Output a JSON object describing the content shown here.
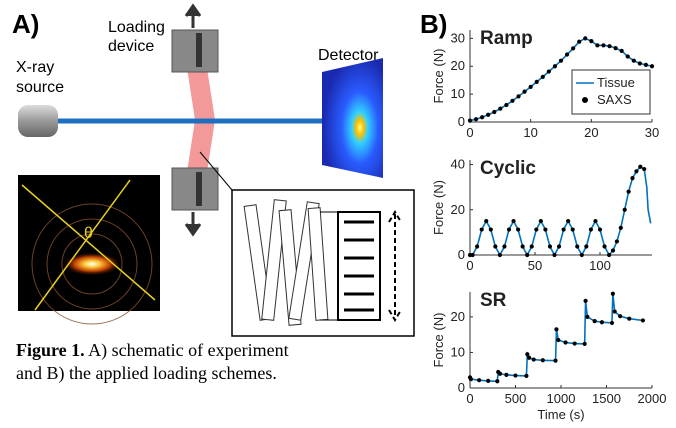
{
  "figure": {
    "panel_a_label": "A)",
    "panel_b_label": "B)",
    "loading_device": [
      "Loading",
      "device"
    ],
    "x_ray_source": [
      "X-ray",
      "source"
    ],
    "detector": "Detector",
    "theta": "θ",
    "caption": {
      "bold": "Figure 1.",
      "lines": [
        " A) schematic of experiment",
        "and B) the applied loading schemes."
      ]
    }
  },
  "chart_data": [
    {
      "type": "line",
      "title": "Ramp",
      "ylabel": "Force (N)",
      "x": [
        0,
        1,
        2,
        3,
        4,
        5,
        6,
        7,
        8,
        9,
        10,
        11,
        12,
        13,
        14,
        15,
        16,
        17,
        18,
        19,
        20,
        21,
        22,
        23,
        24,
        25,
        26,
        27,
        28,
        29,
        30
      ],
      "series": [
        {
          "name": "Tissue",
          "color": "#0072bd",
          "style": "line",
          "values": [
            0.5,
            1,
            1.7,
            2.6,
            3.6,
            4.8,
            6.1,
            7.6,
            9.2,
            10.9,
            12.6,
            14.4,
            16.2,
            18.1,
            20,
            22,
            24.2,
            26.4,
            28.8,
            30,
            29,
            27.5,
            27.5,
            27.2,
            26.5,
            25.5,
            23.5,
            22,
            21,
            20.5,
            20
          ]
        },
        {
          "name": "SAXS",
          "color": "#000000",
          "style": "markers",
          "values": [
            0.5,
            1,
            1.7,
            2.6,
            3.6,
            4.8,
            6.1,
            7.6,
            9.2,
            10.9,
            12.6,
            14.4,
            16.2,
            18.1,
            20,
            22,
            24.2,
            26.4,
            28.8,
            30,
            29,
            27.5,
            27.5,
            27.2,
            26.5,
            25.5,
            23.5,
            22,
            21,
            20.5,
            20
          ]
        }
      ],
      "xlim": [
        0,
        30
      ],
      "xticks": [
        0,
        10,
        20,
        30
      ],
      "ylim": [
        0,
        33
      ],
      "yticks": [
        0,
        10,
        20,
        30
      ],
      "legend": "lower right"
    },
    {
      "type": "line",
      "title": "Cyclic",
      "ylabel": "Force (N)",
      "x": [
        0,
        2,
        5.5,
        9,
        12.5,
        16,
        19.5,
        23,
        26.5,
        30,
        33.5,
        37,
        40.5,
        44,
        47.5,
        51,
        54.5,
        58,
        61.5,
        65,
        68.5,
        72,
        75.5,
        79,
        82.5,
        86,
        89.5,
        93,
        96.5,
        100,
        103.5,
        107,
        110,
        113,
        116,
        119,
        122,
        125,
        128,
        131,
        134,
        136,
        137,
        139
      ],
      "series": [
        {
          "color": "#0072bd",
          "style": "line",
          "values": [
            0,
            0,
            3.75,
            11.25,
            15,
            11.25,
            3.75,
            0,
            3.75,
            11.25,
            15,
            11.25,
            3.75,
            0,
            3.75,
            11.25,
            15,
            11.25,
            3.75,
            0,
            3.75,
            11.25,
            15,
            11.25,
            3.75,
            0,
            3.75,
            11.25,
            15,
            11.25,
            3.75,
            0,
            2,
            6,
            12,
            20,
            28,
            34,
            37,
            39,
            38,
            30,
            20,
            14
          ]
        },
        {
          "color": "#000000",
          "style": "markers",
          "values": [
            0,
            0,
            3.75,
            11.25,
            15,
            11.25,
            3.75,
            0,
            3.75,
            11.25,
            15,
            11.25,
            3.75,
            0,
            3.75,
            11.25,
            15,
            11.25,
            3.75,
            0,
            3.75,
            11.25,
            15,
            11.25,
            3.75,
            0,
            3.75,
            11.25,
            15,
            11.25,
            3.75,
            0,
            2,
            6,
            12,
            20,
            28,
            34,
            37,
            39,
            38,
            null,
            null,
            null
          ]
        }
      ],
      "xlim": [
        0,
        140
      ],
      "xticks": [
        0,
        50,
        100
      ],
      "ylim": [
        0,
        42
      ],
      "yticks": [
        0,
        20,
        40
      ]
    },
    {
      "type": "line",
      "title": "SR",
      "ylabel": "Force (N)",
      "xlabel": "Time (s)",
      "x": [
        0,
        10,
        100,
        200,
        300,
        310,
        330,
        400,
        500,
        620,
        630,
        650,
        700,
        800,
        940,
        950,
        970,
        1050,
        1150,
        1260,
        1270,
        1290,
        1370,
        1450,
        1560,
        1570,
        1590,
        1650,
        1750,
        1900
      ],
      "series": [
        {
          "color": "#0072bd",
          "style": "line",
          "values": [
            3,
            2.5,
            2.2,
            2,
            1.9,
            4.5,
            4,
            3.7,
            3.5,
            3.4,
            9.5,
            8.5,
            8,
            7.8,
            7.7,
            16.5,
            13.5,
            12.8,
            12.5,
            12.4,
            24.5,
            20,
            18.8,
            18.5,
            18.3,
            26.5,
            21.5,
            20.2,
            19.5,
            19
          ]
        },
        {
          "color": "#000000",
          "style": "markers",
          "values": [
            3,
            2.5,
            2.2,
            2,
            1.9,
            4.5,
            4,
            3.7,
            3.5,
            3.4,
            9.5,
            8.5,
            8,
            7.8,
            7.7,
            16.5,
            13.5,
            12.8,
            12.5,
            12.4,
            24.5,
            20,
            18.8,
            18.5,
            18.3,
            26.5,
            21.5,
            20.2,
            19.5,
            19
          ]
        }
      ],
      "xlim": [
        0,
        2000
      ],
      "xticks": [
        0,
        500,
        1000,
        1500,
        2000
      ],
      "ylim": [
        0,
        27
      ],
      "yticks": [
        0,
        10,
        20
      ]
    }
  ]
}
